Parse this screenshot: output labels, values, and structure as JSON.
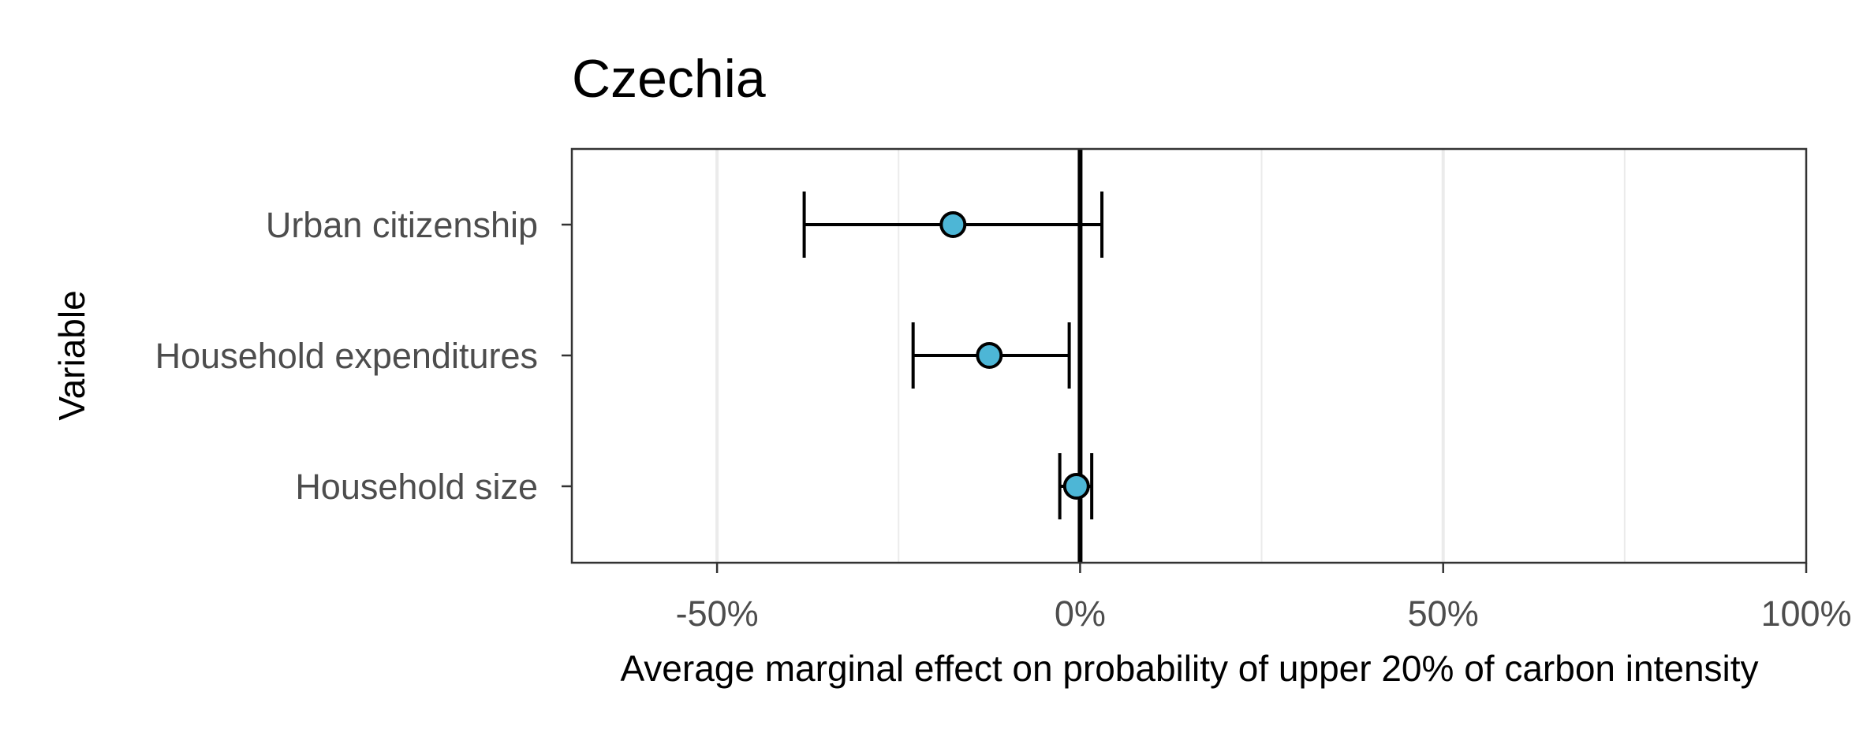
{
  "chart_data": {
    "type": "scatter",
    "subtype": "dot-and-whisker",
    "title": "Czechia",
    "xlabel": "Average marginal effect on probability of upper 20% of carbon intensity",
    "ylabel": "Variable",
    "xlim": [
      -70,
      100
    ],
    "x_ticks": [
      -50,
      0,
      50,
      100
    ],
    "x_tick_labels": [
      "-50%",
      "0%",
      "50%",
      "100%"
    ],
    "x_minor_gridlines": [
      -25,
      25,
      75
    ],
    "reference_line": 0,
    "grid": "vertical",
    "legend": "none",
    "categories": [
      "Urban citizenship",
      "Household expenditures",
      "Household size"
    ],
    "points": [
      {
        "label": "Urban citizenship",
        "estimate": -17.5,
        "ci_low": -38,
        "ci_high": 3
      },
      {
        "label": "Household expenditures",
        "estimate": -12.5,
        "ci_low": -23,
        "ci_high": -1.5
      },
      {
        "label": "Household size",
        "estimate": -0.5,
        "ci_low": -2.8,
        "ci_high": 1.6
      }
    ],
    "colors": {
      "point_fill": "#4db6d6",
      "point_stroke": "#000000",
      "errorbar": "#000000",
      "zero_line": "#000000",
      "grid": "#ebebeb",
      "panel_border": "#333333",
      "tick_label": "#4d4d4d"
    }
  }
}
